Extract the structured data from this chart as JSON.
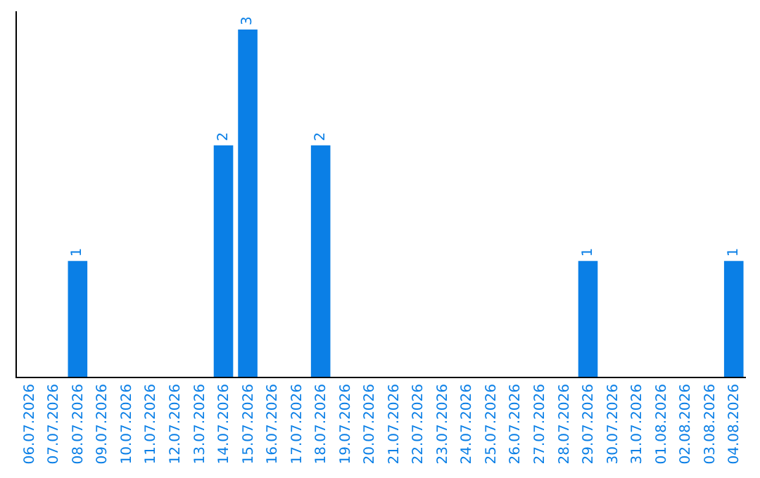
{
  "chart_data": {
    "type": "bar",
    "categories": [
      "06.07.2026",
      "07.07.2026",
      "08.07.2026",
      "09.07.2026",
      "10.07.2026",
      "11.07.2026",
      "12.07.2026",
      "13.07.2026",
      "14.07.2026",
      "15.07.2026",
      "16.07.2026",
      "17.07.2026",
      "18.07.2026",
      "19.07.2026",
      "20.07.2026",
      "21.07.2026",
      "22.07.2026",
      "23.07.2026",
      "24.07.2026",
      "25.07.2026",
      "26.07.2026",
      "27.07.2026",
      "28.07.2026",
      "29.07.2026",
      "30.07.2026",
      "31.07.2026",
      "01.08.2026",
      "02.08.2026",
      "03.08.2026",
      "04.08.2026"
    ],
    "values": [
      0,
      0,
      1,
      0,
      0,
      0,
      0,
      0,
      2,
      3,
      0,
      0,
      2,
      0,
      0,
      0,
      0,
      0,
      0,
      0,
      0,
      0,
      0,
      1,
      0,
      0,
      0,
      0,
      0,
      1
    ],
    "value_labels": [
      null,
      null,
      "1",
      null,
      null,
      null,
      null,
      null,
      "2",
      "3",
      null,
      null,
      "2",
      null,
      null,
      null,
      null,
      null,
      null,
      null,
      null,
      null,
      null,
      "1",
      null,
      null,
      null,
      null,
      null,
      "1"
    ],
    "color": "#0a7fe6",
    "grid": false,
    "legend": false,
    "tick_labels": "x"
  }
}
